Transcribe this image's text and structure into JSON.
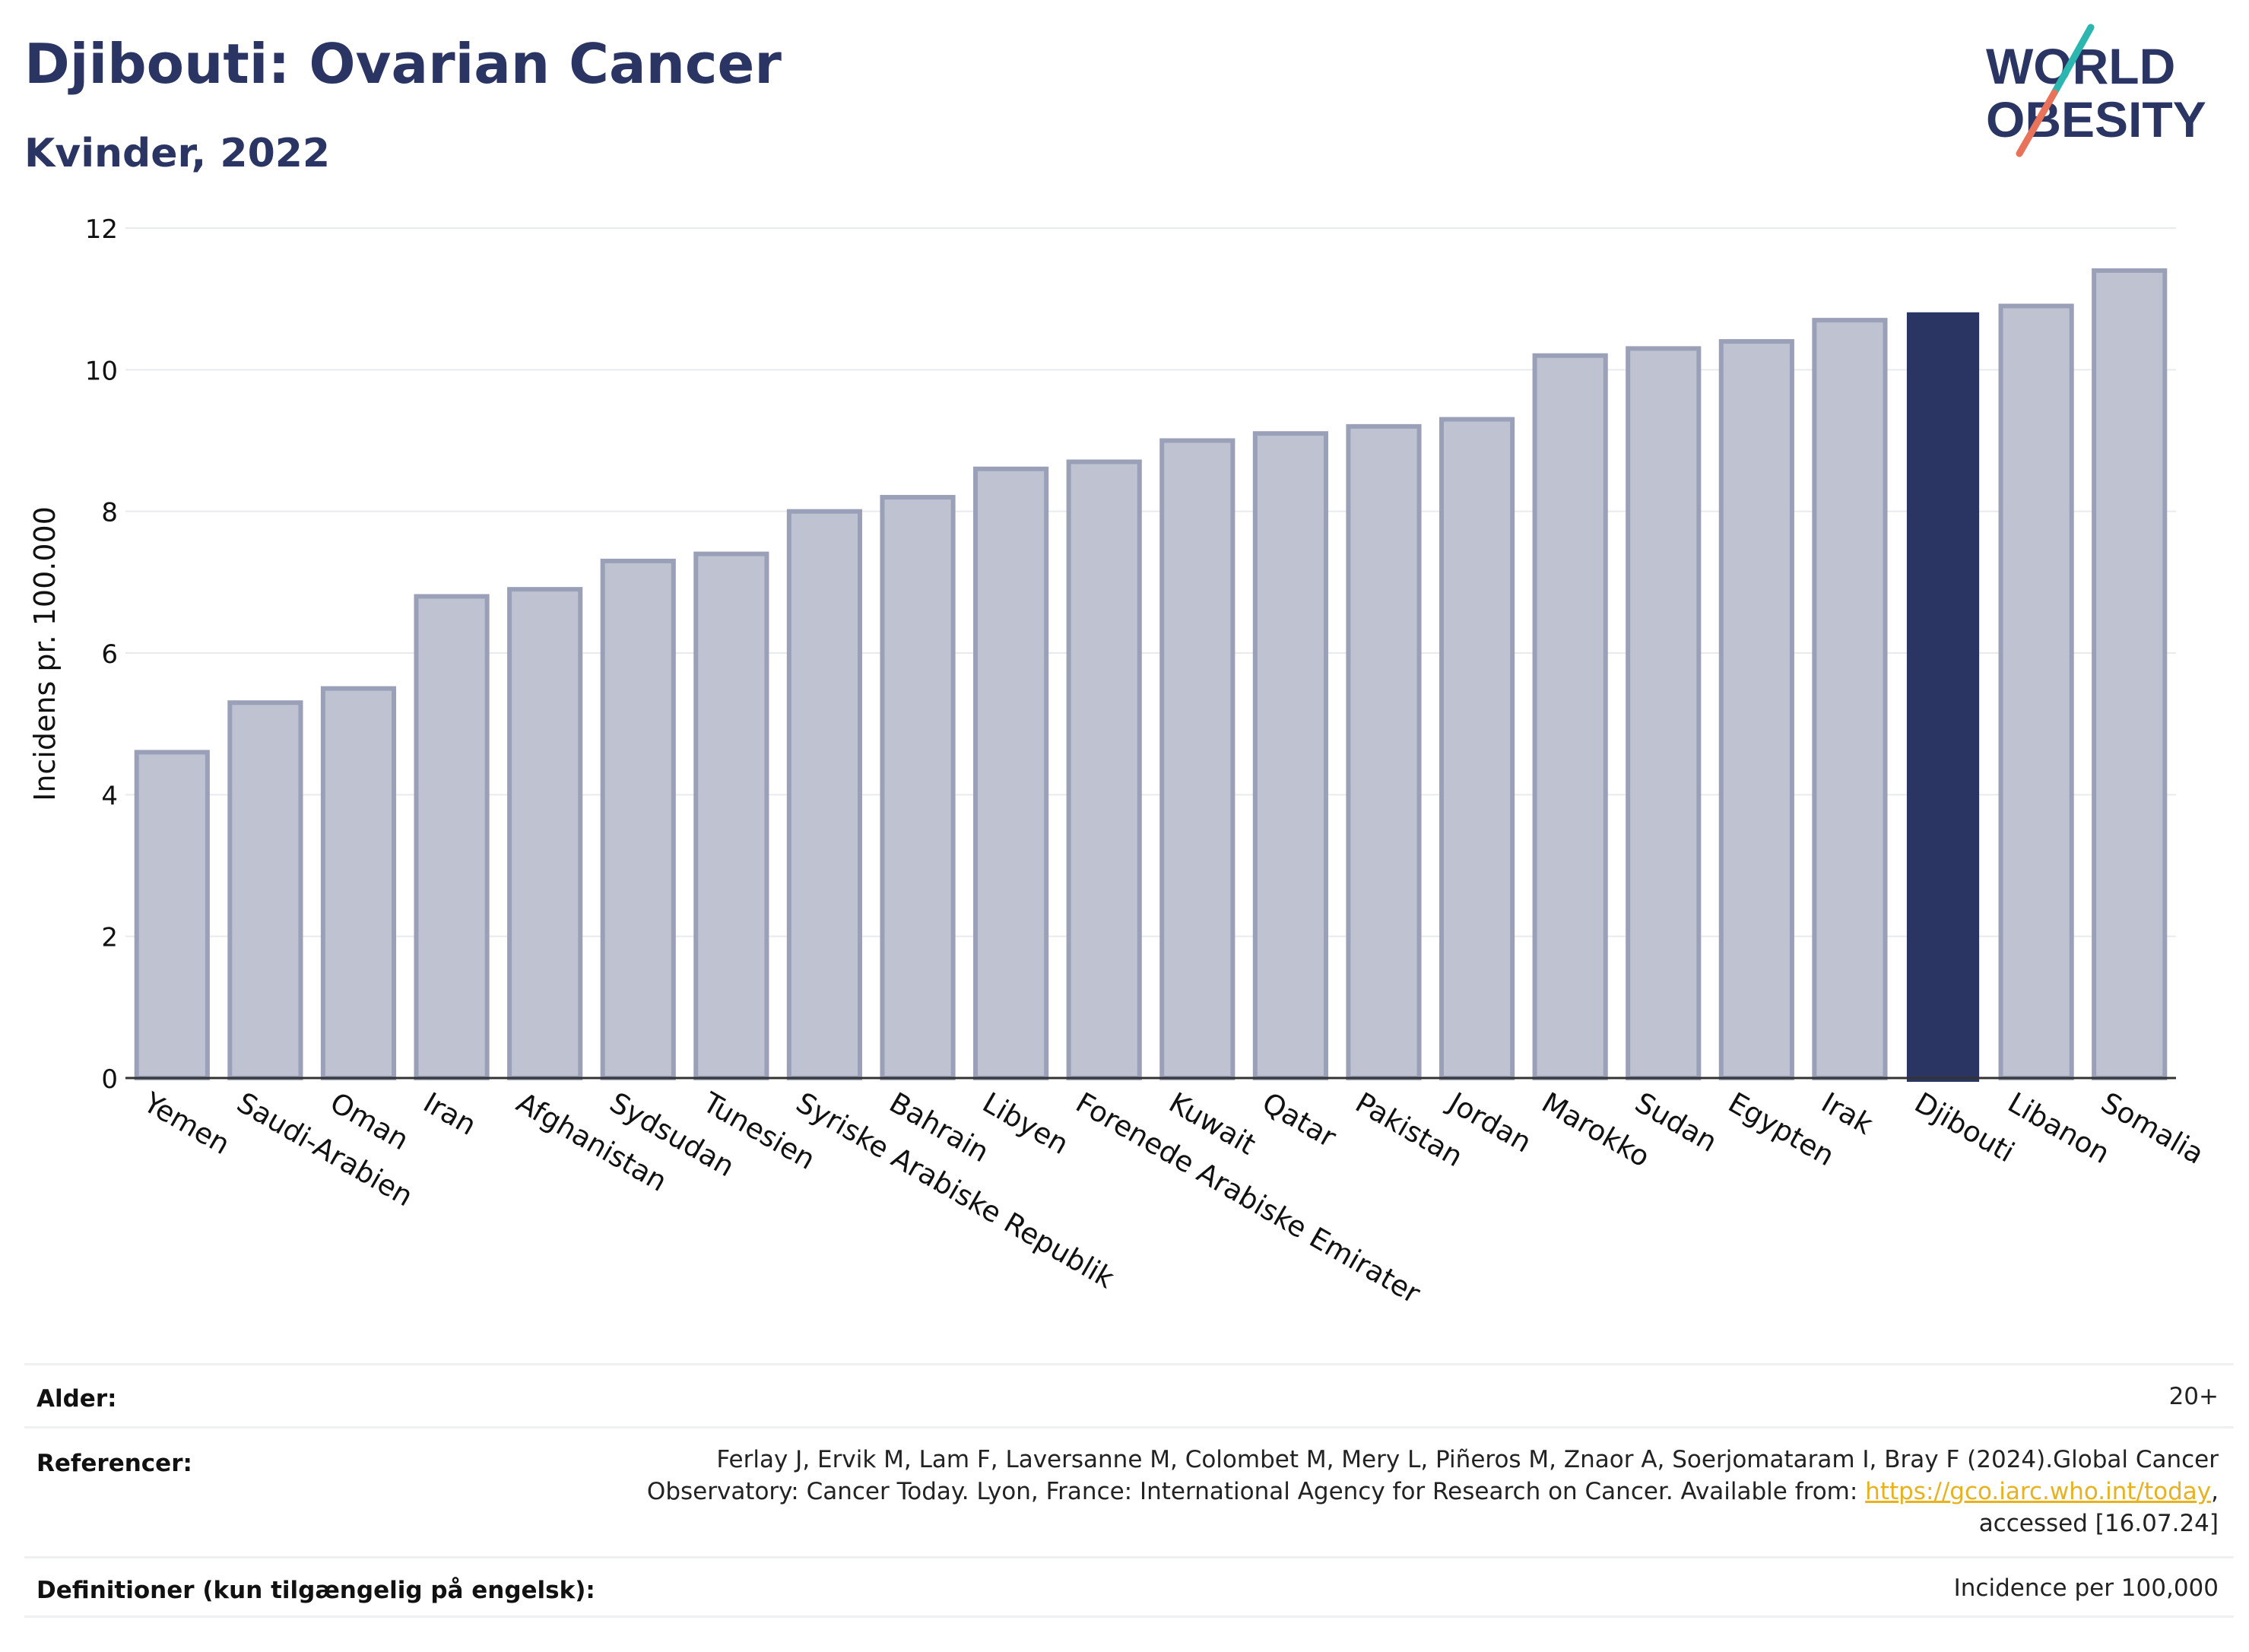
{
  "header": {
    "title": "Djibouti: Ovarian Cancer",
    "subtitle": "Kvinder, 2022"
  },
  "logo": {
    "line1": "WORLD",
    "line2": "OBESITY",
    "colors": {
      "text": "#2a3563",
      "slash_teal": "#2bb6b0",
      "slash_coral": "#e8735a"
    }
  },
  "chart_data": {
    "type": "bar",
    "ylabel": "Incidens pr. 100.000",
    "ylim": [
      0,
      12
    ],
    "yticks": [
      0,
      2,
      4,
      6,
      8,
      10,
      12
    ],
    "grid": true,
    "highlight": "Djibouti",
    "colors": {
      "bar": "#bfc3d1",
      "bar_edge": "#9aa0b8",
      "highlight": "#2a3563"
    },
    "categories": [
      "Yemen",
      "Saudi-Arabien",
      "Oman",
      "Iran",
      "Afghanistan",
      "Sydsudan",
      "Tunesien",
      "Syriske Arabiske Republik",
      "Bahrain",
      "Libyen",
      "Forenede Arabiske Emirater",
      "Kuwait",
      "Qatar",
      "Pakistan",
      "Jordan",
      "Marokko",
      "Sudan",
      "Egypten",
      "Irak",
      "Djibouti",
      "Libanon",
      "Somalia"
    ],
    "values": [
      4.6,
      5.3,
      5.5,
      6.8,
      6.9,
      7.3,
      7.4,
      8.0,
      8.2,
      8.6,
      8.7,
      9.0,
      9.1,
      9.2,
      9.3,
      10.2,
      10.3,
      10.4,
      10.7,
      10.8,
      10.9,
      11.4
    ]
  },
  "info": {
    "age_label": "Alder:",
    "age_value": "20+",
    "ref_label": "Referencer:",
    "ref_line1": "Ferlay J, Ervik M, Lam F, Laversanne M, Colombet M, Mery L, Piñeros M, Znaor A, Soerjomataram I, Bray F (2024).Global Cancer",
    "ref_line2_pre": "Observatory: Cancer Today. Lyon, France: International Agency for Research on Cancer. Available from: ",
    "ref_link": "https://gco.iarc.who.int/today",
    "ref_line2_post": ",",
    "ref_line3": "accessed [16.07.24]",
    "def_label": "Definitioner (kun tilgængelig på engelsk):",
    "def_value": "Incidence per 100,000"
  }
}
